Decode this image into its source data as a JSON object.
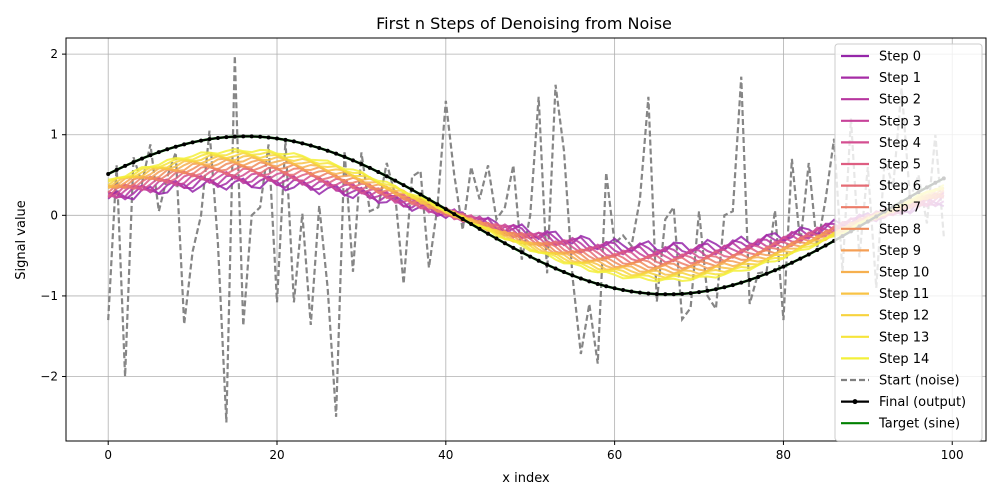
{
  "chart_data": {
    "type": "line",
    "title": "First n Steps of Denoising from Noise",
    "xlabel": "x index",
    "ylabel": "Signal value",
    "xlim": [
      -5,
      104
    ],
    "ylim": [
      -2.8,
      2.2
    ],
    "x_ticks": [
      0,
      20,
      40,
      60,
      80,
      100
    ],
    "y_ticks": [
      -2,
      -1,
      0,
      1,
      2
    ],
    "x_tick_labels": [
      "0",
      "20",
      "40",
      "60",
      "80",
      "100"
    ],
    "y_tick_labels": [
      "−2",
      "−1",
      "0",
      "1",
      "2"
    ],
    "grid": true,
    "legend_position": "right",
    "n_points": 100,
    "noise": {
      "name": "Start (noise)",
      "color": "#808080",
      "values": [
        -1.3,
        0.62,
        -2.0,
        0.72,
        0.4,
        0.88,
        0.05,
        0.48,
        0.78,
        -1.35,
        -0.45,
        0.0,
        1.05,
        -0.35,
        -2.57,
        1.98,
        -1.37,
        0.0,
        0.1,
        0.88,
        -1.08,
        0.93,
        -1.08,
        0.02,
        -1.36,
        0.12,
        -0.9,
        -2.5,
        0.8,
        -0.7,
        0.78,
        0.05,
        0.1,
        0.65,
        0.25,
        -0.85,
        0.48,
        0.55,
        -0.65,
        0.1,
        1.42,
        0.5,
        -0.18,
        0.6,
        0.2,
        0.62,
        -0.05,
        0.1,
        0.62,
        -0.55,
        0.0,
        1.47,
        -0.72,
        1.62,
        0.8,
        -0.75,
        -1.72,
        -1.1,
        -1.84,
        0.53,
        -0.35,
        -0.25,
        -0.38,
        0.2,
        1.47,
        -1.07,
        -0.05,
        0.1,
        -1.29,
        -1.15,
        0.05,
        -1.0,
        -1.16,
        0.0,
        0.05,
        1.72,
        -1.1,
        -0.72,
        -0.7,
        0.06,
        -1.3,
        0.7,
        -0.35,
        0.65,
        -0.4,
        0.2,
        0.95,
        -0.7,
        1.2,
        -0.52,
        0.6,
        -0.9,
        0.7,
        0.35,
        1.58,
        0.2,
        0.5,
        -0.1,
        1.0,
        -0.26
      ]
    },
    "final": {
      "name": "Final (output)",
      "color": "#000000"
    },
    "target": {
      "name": "Target (sine)",
      "color": "#008000",
      "amplitude": 0.98,
      "phase": 0.55,
      "period": 100
    },
    "steps": [
      {
        "name": "Step 0",
        "color": "#9526a9"
      },
      {
        "name": "Step 1",
        "color": "#a62ca6"
      },
      {
        "name": "Step 2",
        "color": "#b7369f"
      },
      {
        "name": "Step 3",
        "color": "#c74299"
      },
      {
        "name": "Step 4",
        "color": "#d44f91"
      },
      {
        "name": "Step 5",
        "color": "#de5e82"
      },
      {
        "name": "Step 6",
        "color": "#e66c75"
      },
      {
        "name": "Step 7",
        "color": "#ec7c68"
      },
      {
        "name": "Step 8",
        "color": "#f08c5b"
      },
      {
        "name": "Step 9",
        "color": "#f59f55"
      },
      {
        "name": "Step 10",
        "color": "#f6b04f"
      },
      {
        "name": "Step 11",
        "color": "#f8c346"
      },
      {
        "name": "Step 12",
        "color": "#f7d33d"
      },
      {
        "name": "Step 13",
        "color": "#f6e43a"
      },
      {
        "name": "Step 14",
        "color": "#f3f03a"
      }
    ],
    "step_fractions": [
      0.4,
      0.43,
      0.46,
      0.49,
      0.52,
      0.55,
      0.58,
      0.61,
      0.64,
      0.67,
      0.7,
      0.73,
      0.76,
      0.79,
      0.82
    ]
  }
}
